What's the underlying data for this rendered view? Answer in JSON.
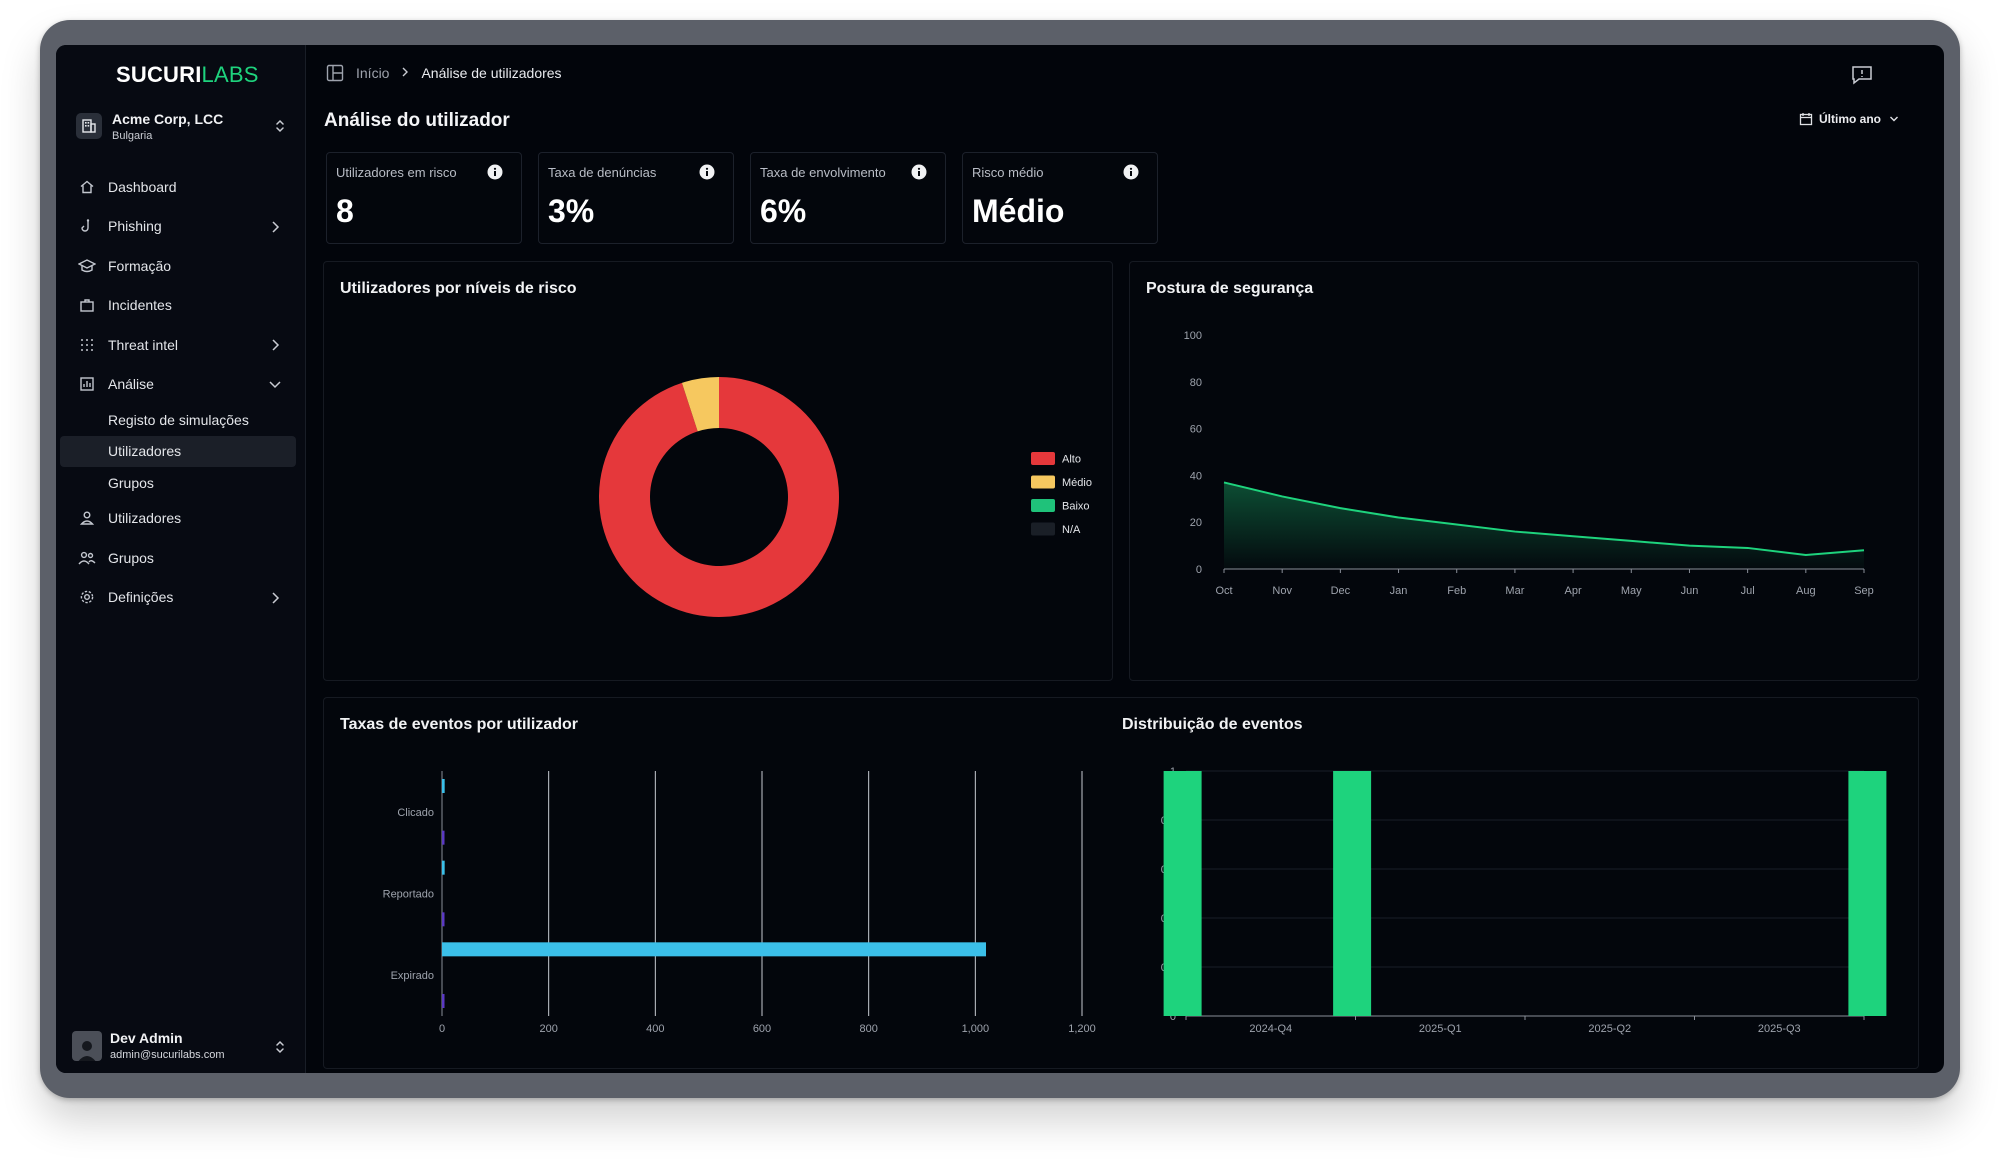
{
  "brand": {
    "part1": "SUCURI",
    "part2": "LABS",
    "accent": "#1ed37d"
  },
  "org": {
    "name": "Acme Corp, LCC",
    "country": "Bulgaria"
  },
  "nav": {
    "dashboard": "Dashboard",
    "phishing": "Phishing",
    "formacao": "Formação",
    "incidentes": "Incidentes",
    "threat_intel": "Threat intel",
    "analise": "Análise",
    "sub": {
      "registo": "Registo de simulações",
      "utilizadores": "Utilizadores",
      "grupos": "Grupos"
    },
    "utilizadores": "Utilizadores",
    "grupos": "Grupos",
    "definicoes": "Definições"
  },
  "user": {
    "name": "Dev Admin",
    "email": "admin@sucurilabs.com"
  },
  "breadcrumb": {
    "home": "Início",
    "current": "Análise de utilizadores"
  },
  "page": {
    "title": "Análise do utilizador",
    "range": "Último ano"
  },
  "kpis": [
    {
      "label": "Utilizadores em risco",
      "value": "8"
    },
    {
      "label": "Taxa de denúncias",
      "value": "3%"
    },
    {
      "label": "Taxa de envolvimento",
      "value": "6%"
    },
    {
      "label": "Risco médio",
      "value": "Médio"
    }
  ],
  "cards": {
    "risk": "Utilizadores por níveis de risco",
    "posture": "Postura de segurança",
    "rates": "Taxas de eventos por utilizador",
    "dist": "Distribuição de eventos"
  },
  "chart_data": [
    {
      "type": "pie",
      "title": "Utilizadores por níveis de risco",
      "donut": true,
      "legend_position": "right",
      "slices": [
        {
          "label": "Alto",
          "value": 95,
          "color": "#e5383b"
        },
        {
          "label": "Médio",
          "value": 5,
          "color": "#f6c85f"
        },
        {
          "label": "Baixo",
          "value": 0,
          "color": "#1fc27a"
        },
        {
          "label": "N/A",
          "value": 0,
          "color": "#1a1f27"
        }
      ]
    },
    {
      "type": "area",
      "title": "Postura de segurança",
      "x": [
        "Oct",
        "Nov",
        "Dec",
        "Jan",
        "Feb",
        "Mar",
        "Apr",
        "May",
        "Jun",
        "Jul",
        "Aug",
        "Sep"
      ],
      "values": [
        37,
        31,
        26,
        22,
        19,
        16,
        14,
        12,
        10,
        9,
        6,
        8
      ],
      "ylim": [
        0,
        100
      ],
      "yticks": [
        0,
        20,
        40,
        60,
        80,
        100
      ],
      "color": "#1ed37d"
    },
    {
      "type": "bar",
      "orientation": "horizontal",
      "title": "Taxas de eventos por utilizador",
      "categories": [
        "Clicado",
        "Reportado",
        "Expirado"
      ],
      "series": [
        {
          "values": [
            5,
            5,
            1020
          ],
          "color": "#3bbfe9"
        },
        {
          "values": [
            2,
            2,
            2
          ],
          "color": "#5b39c4"
        }
      ],
      "xlim": [
        0,
        1200
      ],
      "xticks": [
        "0",
        "200",
        "400",
        "600",
        "800",
        "1,000",
        "1,200"
      ]
    },
    {
      "type": "bar",
      "title": "Distribuição de eventos",
      "categories": [
        "2024-Q4",
        "2025-Q1",
        "2025-Q2",
        "2025-Q3"
      ],
      "values": [
        1,
        1,
        0,
        1
      ],
      "ylim": [
        0,
        1
      ],
      "yticks": [
        "0",
        "0.2",
        "0.4",
        "0.6",
        "0.8",
        "1"
      ],
      "color": "#1ed37d"
    }
  ]
}
